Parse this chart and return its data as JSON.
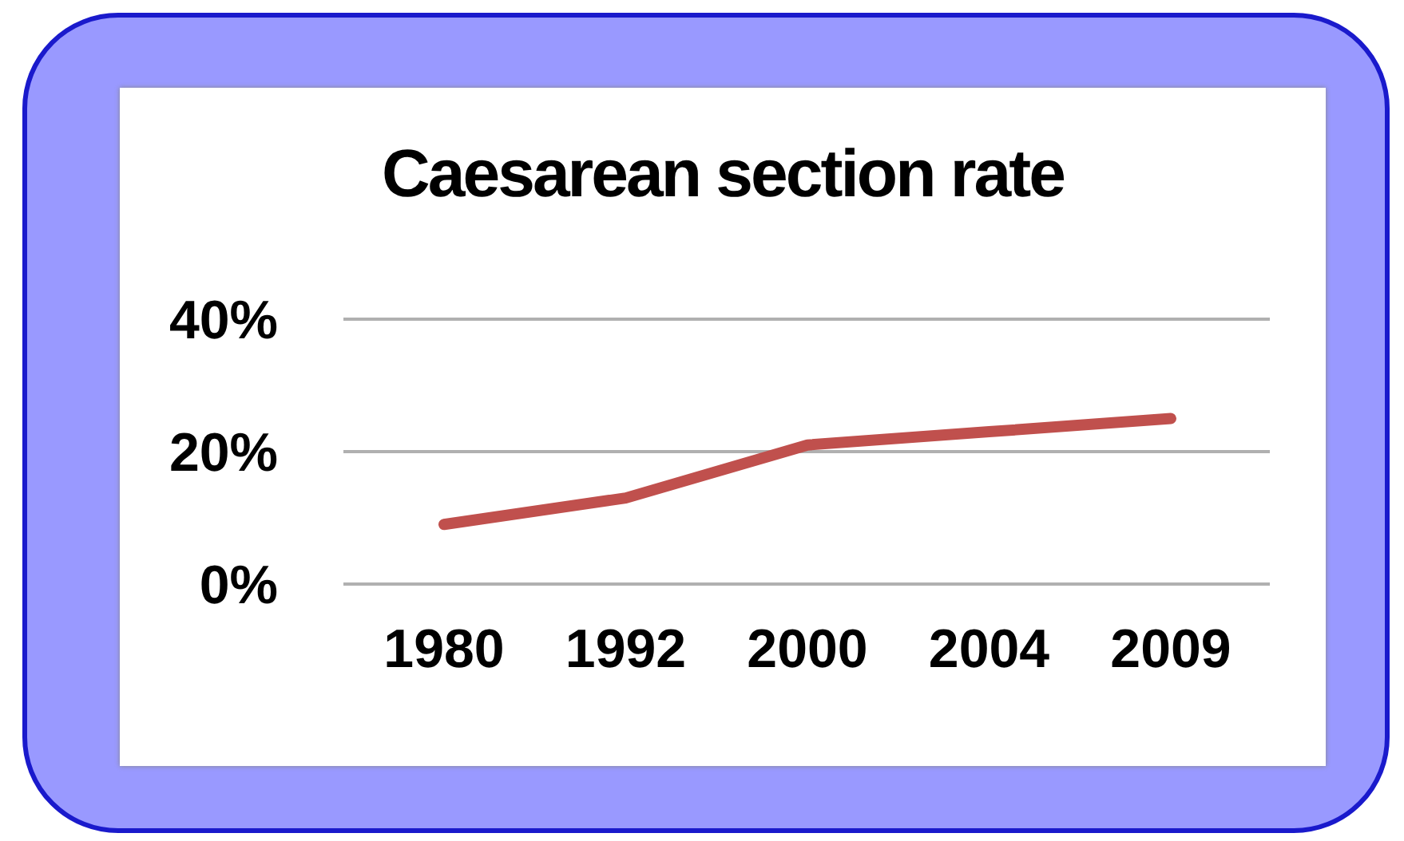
{
  "chart_data": {
    "type": "line",
    "title": "Caesarean section rate",
    "categories": [
      "1980",
      "1992",
      "2000",
      "2004",
      "2009"
    ],
    "series": [
      {
        "color": "#c0504d",
        "values": [
          9,
          13,
          21,
          23,
          25
        ]
      }
    ],
    "ylim": [
      0,
      40
    ],
    "yticks": [
      {
        "value": 0,
        "label": "0%"
      },
      {
        "value": 20,
        "label": "20%"
      },
      {
        "value": 40,
        "label": "40%"
      }
    ],
    "grid": "y",
    "legend": false,
    "marker": "none"
  }
}
